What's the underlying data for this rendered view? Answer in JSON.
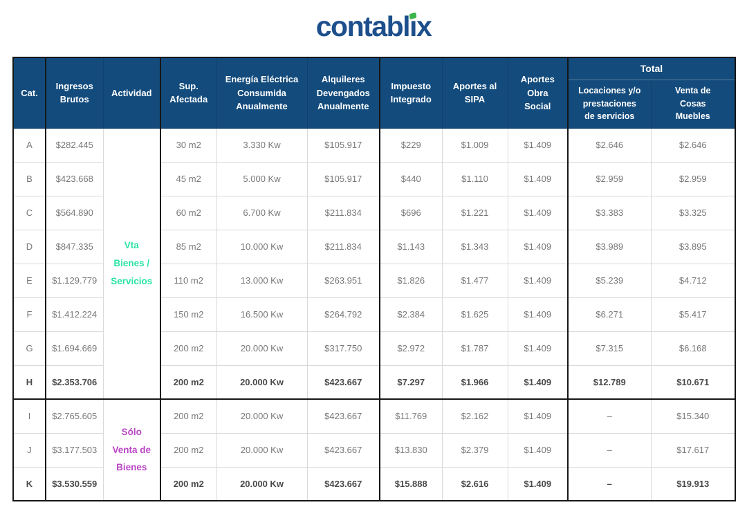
{
  "logo": {
    "prefix": "contabl",
    "i_char": "ı",
    "suffix": "x",
    "brand_color": "#1d4f8c",
    "accent_color": "#3db54a"
  },
  "table": {
    "headers": {
      "cat": "Cat.",
      "ingresos": "Ingresos\nBrutos",
      "actividad": "Actividad",
      "sup": "Sup.\nAfectada",
      "energia": "Energía Eléctrica\nConsumida\nAnualmente",
      "alquileres": "Alquileres\nDevengados\nAnualmente",
      "impuesto": "Impuesto\nIntegrado",
      "sipa": "Aportes al\nSIPA",
      "obra_social": "Aportes\nObra\nSocial",
      "total": "Total",
      "total_locaciones": "Locaciones y/o\nprestaciones\nde servicios",
      "total_venta": "Venta de\nCosas\nMuebles"
    },
    "header_bg_color": "#134b7c",
    "activity_groups": [
      {
        "label": "Vta\nBienes /\nServicios",
        "rows": 8,
        "color": "#2be3a3"
      },
      {
        "label": "Sólo\nVenta de\nBienes",
        "rows": 3,
        "color": "#ba45c5"
      }
    ],
    "rows": [
      {
        "cat": "A",
        "ingresos": "$282.445",
        "sup": "30 m2",
        "energia": "3.330 Kw",
        "alquileres": "$105.917",
        "impuesto": "$229",
        "sipa": "$1.009",
        "obra_social": "$1.409",
        "total_locaciones": "$2.646",
        "total_venta": "$2.646",
        "bold": false
      },
      {
        "cat": "B",
        "ingresos": "$423.668",
        "sup": "45 m2",
        "energia": "5.000 Kw",
        "alquileres": "$105.917",
        "impuesto": "$440",
        "sipa": "$1.110",
        "obra_social": "$1.409",
        "total_locaciones": "$2.959",
        "total_venta": "$2.959",
        "bold": false
      },
      {
        "cat": "C",
        "ingresos": "$564.890",
        "sup": "60 m2",
        "energia": "6.700 Kw",
        "alquileres": "$211.834",
        "impuesto": "$696",
        "sipa": "$1.221",
        "obra_social": "$1.409",
        "total_locaciones": "$3.383",
        "total_venta": "$3.325",
        "bold": false
      },
      {
        "cat": "D",
        "ingresos": "$847.335",
        "sup": "85 m2",
        "energia": "10.000 Kw",
        "alquileres": "$211.834",
        "impuesto": "$1.143",
        "sipa": "$1.343",
        "obra_social": "$1.409",
        "total_locaciones": "$3.989",
        "total_venta": "$3.895",
        "bold": false
      },
      {
        "cat": "E",
        "ingresos": "$1.129.779",
        "sup": "110 m2",
        "energia": "13.000 Kw",
        "alquileres": "$263.951",
        "impuesto": "$1.826",
        "sipa": "$1.477",
        "obra_social": "$1.409",
        "total_locaciones": "$5.239",
        "total_venta": "$4.712",
        "bold": false
      },
      {
        "cat": "F",
        "ingresos": "$1.412.224",
        "sup": "150 m2",
        "energia": "16.500 Kw",
        "alquileres": "$264.792",
        "impuesto": "$2.384",
        "sipa": "$1.625",
        "obra_social": "$1.409",
        "total_locaciones": "$6.271",
        "total_venta": "$5.417",
        "bold": false
      },
      {
        "cat": "G",
        "ingresos": "$1.694.669",
        "sup": "200 m2",
        "energia": "20.000 Kw",
        "alquileres": "$317.750",
        "impuesto": "$2.972",
        "sipa": "$1.787",
        "obra_social": "$1.409",
        "total_locaciones": "$7.315",
        "total_venta": "$6.168",
        "bold": false
      },
      {
        "cat": "H",
        "ingresos": "$2.353.706",
        "sup": "200 m2",
        "energia": "20.000 Kw",
        "alquileres": "$423.667",
        "impuesto": "$7.297",
        "sipa": "$1.966",
        "obra_social": "$1.409",
        "total_locaciones": "$12.789",
        "total_venta": "$10.671",
        "bold": true
      },
      {
        "cat": "I",
        "ingresos": "$2.765.605",
        "sup": "200 m2",
        "energia": "20.000 Kw",
        "alquileres": "$423.667",
        "impuesto": "$11.769",
        "sipa": "$2.162",
        "obra_social": "$1.409",
        "total_locaciones": "–",
        "total_venta": "$15.340",
        "bold": false
      },
      {
        "cat": "J",
        "ingresos": "$3.177.503",
        "sup": "200 m2",
        "energia": "20.000 Kw",
        "alquileres": "$423.667",
        "impuesto": "$13.830",
        "sipa": "$2.379",
        "obra_social": "$1.409",
        "total_locaciones": "–",
        "total_venta": "$17.617",
        "bold": false
      },
      {
        "cat": "K",
        "ingresos": "$3.530.559",
        "sup": "200 m2",
        "energia": "20.000 Kw",
        "alquileres": "$423.667",
        "impuesto": "$15.888",
        "sipa": "$2.616",
        "obra_social": "$1.409",
        "total_locaciones": "–",
        "total_venta": "$19.913",
        "bold": true
      }
    ]
  }
}
